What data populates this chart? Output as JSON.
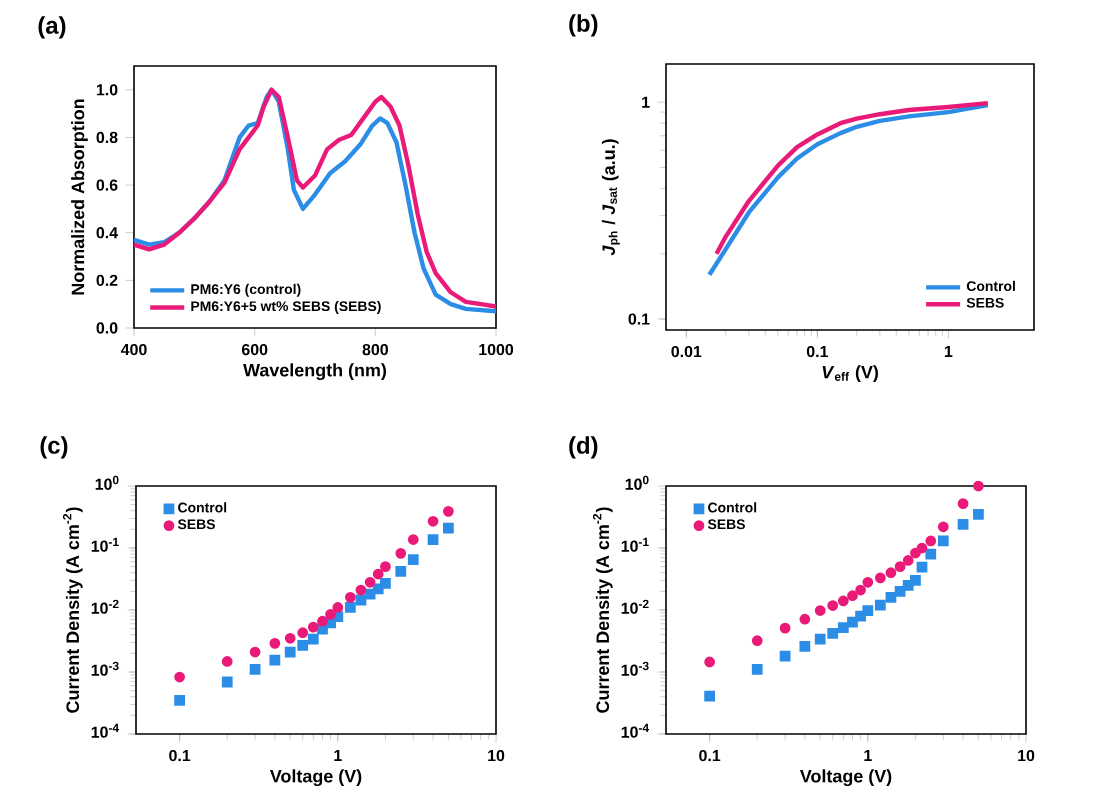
{
  "chart_data": [
    {
      "type": "line",
      "title": "(a)",
      "xlabel": "Wavelength (nm)",
      "ylabel": "Normalized Absorption",
      "xlim": [
        400,
        1000
      ],
      "ylim": [
        0,
        1.1
      ],
      "xticks": [
        400,
        600,
        800,
        1000
      ],
      "yticks": [
        {
          "value": 0,
          "label": "0.0"
        },
        0.2,
        0.4,
        0.6,
        0.8,
        {
          "value": 1,
          "label": "1.0"
        }
      ],
      "legend": "bottom left",
      "series": [
        {
          "name": "PM6:Y6 (control)",
          "color": "#2b8de6",
          "x": [
            400,
            425,
            450,
            475,
            500,
            525,
            550,
            575,
            590,
            605,
            620,
            628,
            640,
            655,
            665,
            680,
            700,
            725,
            750,
            775,
            795,
            808,
            820,
            835,
            850,
            865,
            880,
            900,
            925,
            950,
            1000
          ],
          "values": [
            0.37,
            0.35,
            0.36,
            0.4,
            0.46,
            0.53,
            0.62,
            0.8,
            0.85,
            0.86,
            0.97,
            1.0,
            0.95,
            0.75,
            0.58,
            0.5,
            0.56,
            0.65,
            0.7,
            0.77,
            0.85,
            0.88,
            0.86,
            0.78,
            0.6,
            0.4,
            0.25,
            0.14,
            0.1,
            0.08,
            0.07
          ]
        },
        {
          "name": "PM6:Y6+5 wt% SEBS (SEBS)",
          "color": "#ea1a78",
          "x": [
            400,
            425,
            450,
            475,
            500,
            525,
            550,
            575,
            590,
            605,
            615,
            628,
            640,
            655,
            670,
            680,
            700,
            720,
            740,
            760,
            780,
            800,
            810,
            825,
            840,
            855,
            870,
            885,
            900,
            925,
            950,
            975,
            1000
          ],
          "values": [
            0.35,
            0.33,
            0.35,
            0.4,
            0.46,
            0.53,
            0.61,
            0.75,
            0.8,
            0.85,
            0.93,
            1.0,
            0.97,
            0.8,
            0.62,
            0.59,
            0.64,
            0.75,
            0.79,
            0.81,
            0.88,
            0.95,
            0.97,
            0.93,
            0.85,
            0.68,
            0.48,
            0.32,
            0.23,
            0.15,
            0.11,
            0.1,
            0.09
          ]
        }
      ]
    },
    {
      "type": "line",
      "title": "(b)",
      "xlabel": "*V*$_{eff}$ (V)",
      "ylabel": "*J*$_{ph}$ / *J*$_{sat}$ (a.u.)",
      "log": "xy",
      "xlim": [
        0.007,
        4.5
      ],
      "ylim": [
        0.089,
        1.5
      ],
      "xticks": [
        0.01,
        0.1,
        1
      ],
      "yticks": [
        0.1,
        1
      ],
      "legend": "bottom right",
      "series": [
        {
          "name": "Control",
          "color": "#2b8de6",
          "x": [
            0.015,
            0.02,
            0.03,
            0.05,
            0.07,
            0.1,
            0.15,
            0.2,
            0.3,
            0.5,
            1,
            2
          ],
          "values": [
            0.16,
            0.21,
            0.31,
            0.45,
            0.55,
            0.64,
            0.72,
            0.77,
            0.82,
            0.86,
            0.9,
            0.97
          ]
        },
        {
          "name": "SEBS",
          "color": "#ea1a78",
          "x": [
            0.017,
            0.02,
            0.03,
            0.05,
            0.07,
            0.1,
            0.15,
            0.2,
            0.3,
            0.5,
            1,
            2
          ],
          "values": [
            0.2,
            0.24,
            0.35,
            0.51,
            0.62,
            0.71,
            0.8,
            0.84,
            0.88,
            0.92,
            0.95,
            0.99
          ]
        }
      ]
    },
    {
      "type": "scatter",
      "title": "(c)",
      "xlabel": "Voltage (V)",
      "ylabel": "Current Density (A cm$^{-2}$)",
      "log": "xy",
      "xlim": [
        0.053,
        10
      ],
      "ylim": [
        0.0001,
        1
      ],
      "xticks": [
        0.1,
        1,
        10
      ],
      "yticks": [
        {
          "value": 0.0001,
          "label": "10$^{-4}$"
        },
        {
          "value": 0.001,
          "label": "10$^{-3}$"
        },
        {
          "value": 0.01,
          "label": "10$^{-2}$"
        },
        {
          "value": 0.1,
          "label": "10$^{-1}$"
        },
        {
          "value": 1,
          "label": "10$^{0}$"
        }
      ],
      "legend": "top left",
      "x": [
        0.1,
        0.2,
        0.3,
        0.4,
        0.5,
        0.6,
        0.7,
        0.8,
        0.9,
        1.0,
        1.2,
        1.4,
        1.6,
        1.8,
        2.0,
        2.5,
        3.0,
        4.0,
        5.0
      ],
      "series": [
        {
          "name": "Control",
          "color": "#2b8de6",
          "marker": "square",
          "values": [
            0.00035,
            0.00069,
            0.0011,
            0.00155,
            0.0021,
            0.0027,
            0.0034,
            0.0049,
            0.0062,
            0.0078,
            0.011,
            0.0145,
            0.018,
            0.022,
            0.027,
            0.042,
            0.065,
            0.137,
            0.21
          ]
        },
        {
          "name": "SEBS",
          "color": "#ea1a78",
          "marker": "circle",
          "values": [
            0.00083,
            0.00148,
            0.0021,
            0.0029,
            0.0035,
            0.0043,
            0.0053,
            0.0066,
            0.0085,
            0.011,
            0.016,
            0.021,
            0.028,
            0.038,
            0.05,
            0.082,
            0.137,
            0.27,
            0.39
          ]
        }
      ]
    },
    {
      "type": "scatter",
      "title": "(d)",
      "xlabel": "Voltage (V)",
      "ylabel": "Current Density (A cm$^{-2}$)",
      "log": "xy",
      "xlim": [
        0.053,
        10
      ],
      "ylim": [
        0.0001,
        1
      ],
      "xticks": [
        0.1,
        1,
        10
      ],
      "yticks": [
        {
          "value": 0.0001,
          "label": "10$^{-4}$"
        },
        {
          "value": 0.001,
          "label": "10$^{-3}$"
        },
        {
          "value": 0.01,
          "label": "10$^{-2}$"
        },
        {
          "value": 0.1,
          "label": "10$^{-1}$"
        },
        {
          "value": 1,
          "label": "10$^{0}$"
        }
      ],
      "legend": "top left",
      "x": [
        0.1,
        0.2,
        0.3,
        0.4,
        0.5,
        0.6,
        0.7,
        0.8,
        0.9,
        1.0,
        1.2,
        1.4,
        1.6,
        1.8,
        2.0,
        2.2,
        2.5,
        3.0,
        4.0,
        5.0
      ],
      "series": [
        {
          "name": "Control",
          "color": "#2b8de6",
          "marker": "square",
          "values": [
            0.00041,
            0.0011,
            0.0018,
            0.0026,
            0.0034,
            0.0042,
            0.0052,
            0.0064,
            0.008,
            0.0098,
            0.012,
            0.016,
            0.02,
            0.025,
            0.03,
            0.049,
            0.08,
            0.13,
            0.24,
            0.35
          ]
        },
        {
          "name": "SEBS",
          "color": "#ea1a78",
          "marker": "circle",
          "values": [
            0.00145,
            0.0032,
            0.0051,
            0.0071,
            0.0098,
            0.0118,
            0.014,
            0.017,
            0.021,
            0.028,
            0.033,
            0.04,
            0.05,
            0.063,
            0.083,
            0.1,
            0.13,
            0.22,
            0.52,
            1.0
          ]
        }
      ]
    }
  ]
}
